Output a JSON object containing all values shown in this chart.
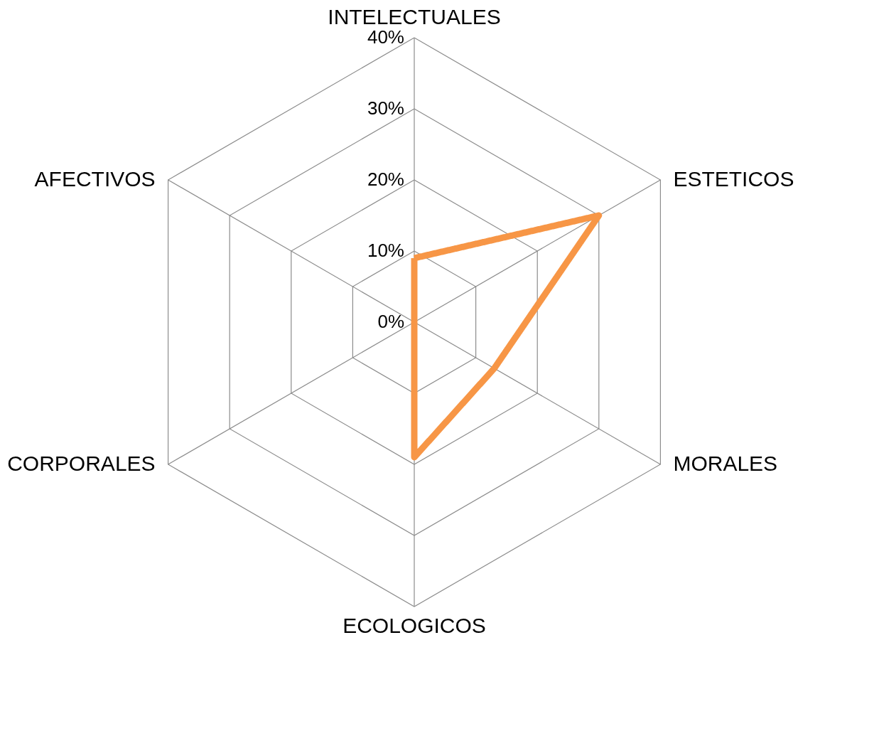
{
  "chart_data": {
    "type": "radar",
    "categories": [
      "INTELECTUALES",
      "ESTETICOS",
      "MORALES",
      "ECOLOGICOS",
      "CORPORALES",
      "AFECTIVOS"
    ],
    "series": [
      {
        "color": "#f79646",
        "values": [
          9,
          30,
          13,
          19,
          0,
          0
        ]
      }
    ],
    "ylim": [
      0,
      40
    ],
    "yticks": [
      {
        "value": 0,
        "label": "0%"
      },
      {
        "value": 10,
        "label": "10%"
      },
      {
        "value": 20,
        "label": "20%"
      },
      {
        "value": 30,
        "label": "30%"
      },
      {
        "value": 40,
        "label": "40%"
      }
    ],
    "line_style": "solid"
  }
}
